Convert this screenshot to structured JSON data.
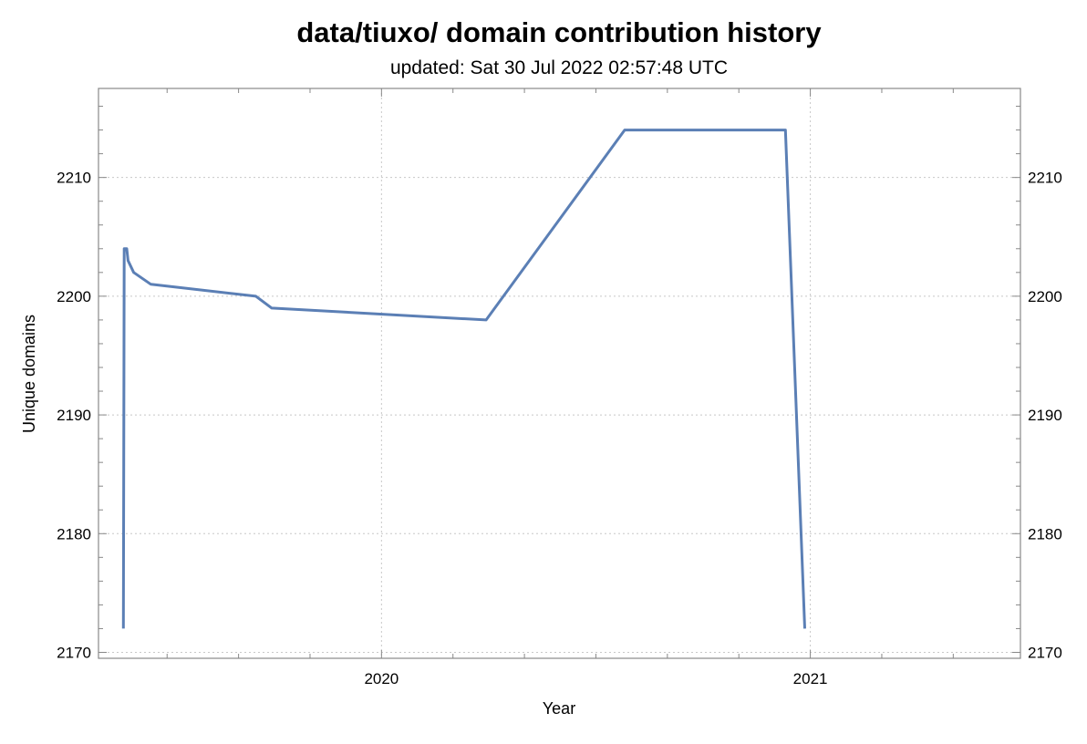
{
  "chart_data": {
    "type": "line",
    "title": "data/tiuxo/ domain contribution history",
    "subtitle": "updated: Sat 30 Jul 2022 02:57:48 UTC",
    "xlabel": "Year",
    "ylabel": "Unique domains",
    "xlim": [
      2019.34,
      2021.49
    ],
    "ylim": [
      2169.5,
      2217.5
    ],
    "x_ticks": [
      {
        "value": 2020,
        "label": "2020"
      },
      {
        "value": 2021,
        "label": "2021"
      }
    ],
    "y_ticks": [
      {
        "value": 2170,
        "label": "2170"
      },
      {
        "value": 2180,
        "label": "2180"
      },
      {
        "value": 2190,
        "label": "2190"
      },
      {
        "value": 2200,
        "label": "2200"
      },
      {
        "value": 2210,
        "label": "2210"
      }
    ],
    "grid": true,
    "series": [
      {
        "color": "#5b7fb5",
        "points": [
          {
            "x": 2019.398,
            "y": 2172
          },
          {
            "x": 2019.4,
            "y": 2204
          },
          {
            "x": 2019.406,
            "y": 2204
          },
          {
            "x": 2019.409,
            "y": 2203
          },
          {
            "x": 2019.422,
            "y": 2202
          },
          {
            "x": 2019.462,
            "y": 2201
          },
          {
            "x": 2019.707,
            "y": 2200
          },
          {
            "x": 2019.744,
            "y": 2199
          },
          {
            "x": 2020.244,
            "y": 2198
          },
          {
            "x": 2020.567,
            "y": 2214
          },
          {
            "x": 2020.942,
            "y": 2214
          },
          {
            "x": 2020.987,
            "y": 2172
          }
        ]
      }
    ]
  }
}
